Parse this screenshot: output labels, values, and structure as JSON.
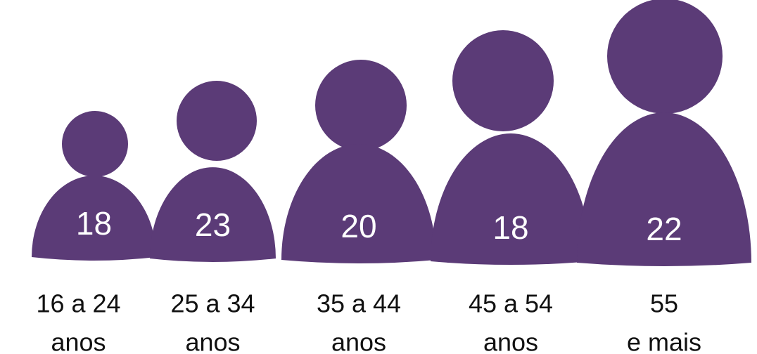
{
  "chart_data": {
    "type": "pictograph",
    "categories": [
      [
        "16 a 24",
        "anos"
      ],
      [
        "25 a 34",
        "anos"
      ],
      [
        "35 a 44",
        "anos"
      ],
      [
        "45 a 54",
        "anos"
      ],
      [
        "55",
        "e mais"
      ]
    ],
    "values": [
      18,
      23,
      20,
      18,
      22
    ],
    "color": "#5b3b77"
  }
}
